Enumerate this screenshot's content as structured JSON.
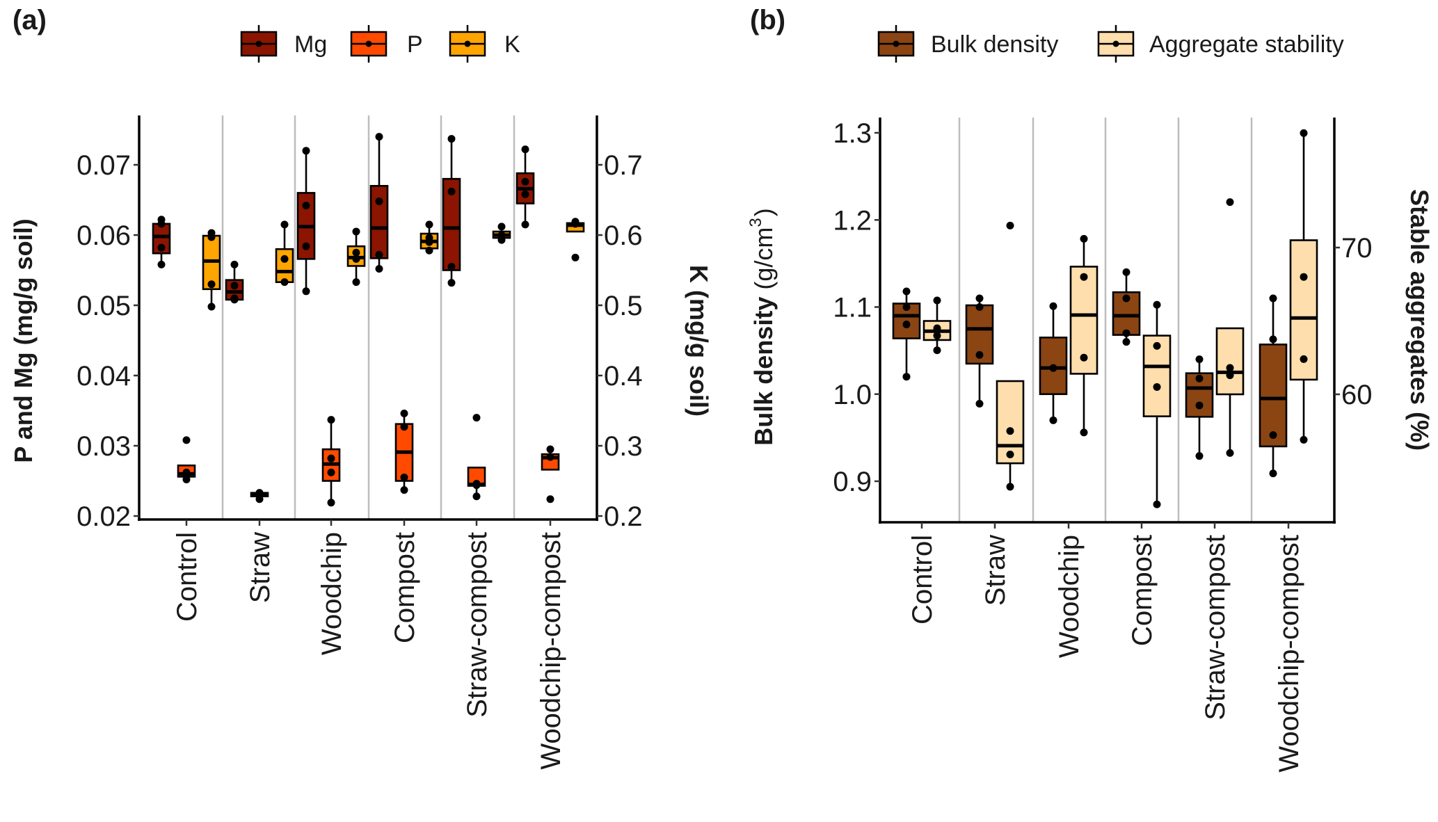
{
  "figure": {
    "panel_a_label": "(a)",
    "panel_b_label": "(b)"
  },
  "chart_data": [
    {
      "type": "box",
      "panel": "(a)",
      "legend": [
        {
          "name": "Mg",
          "color": "#8B1500"
        },
        {
          "name": "P",
          "color": "#FF4A00"
        },
        {
          "name": "K",
          "color": "#FFA500"
        }
      ],
      "legend_position": "top",
      "categories": [
        "Control",
        "Straw",
        "Woodchip",
        "Compost",
        "Straw-compost",
        "Woodchip-compost"
      ],
      "ylabel_left": "P and Mg (mg/g soil)",
      "ylabel_right": "K (mg/g soil)",
      "ylim_left": [
        0.0195,
        0.077
      ],
      "ylim_right": [
        0.195,
        0.77
      ],
      "yticks_left": [
        "0.02",
        "0.03",
        "0.04",
        "0.05",
        "0.06",
        "0.07"
      ],
      "yticks_right": [
        "0.2",
        "0.3",
        "0.4",
        "0.5",
        "0.6",
        "0.7"
      ],
      "grid": "vertical separators between categories",
      "series": [
        {
          "name": "Mg",
          "axis": "left",
          "color": "#8B1500",
          "boxes": [
            {
              "q1": 0.0574,
              "median": 0.0598,
              "q3": 0.0616,
              "whisker_low": 0.0558,
              "whisker_high": 0.0622,
              "points": [
                0.0558,
                0.0582,
                0.0616,
                0.0622
              ]
            },
            {
              "q1": 0.0508,
              "median": 0.0519,
              "q3": 0.0536,
              "whisker_low": 0.0508,
              "whisker_high": 0.0558,
              "points": [
                0.0508,
                0.051,
                0.0528,
                0.0558
              ]
            },
            {
              "q1": 0.0566,
              "median": 0.0612,
              "q3": 0.066,
              "whisker_low": 0.052,
              "whisker_high": 0.072,
              "points": [
                0.052,
                0.0584,
                0.0642,
                0.072
              ]
            },
            {
              "q1": 0.0567,
              "median": 0.061,
              "q3": 0.067,
              "whisker_low": 0.0552,
              "whisker_high": 0.074,
              "points": [
                0.0552,
                0.0572,
                0.0648,
                0.074
              ]
            },
            {
              "q1": 0.055,
              "median": 0.061,
              "q3": 0.068,
              "whisker_low": 0.0532,
              "whisker_high": 0.0737,
              "points": [
                0.0532,
                0.0555,
                0.0662,
                0.0737
              ]
            },
            {
              "q1": 0.0645,
              "median": 0.0666,
              "q3": 0.0688,
              "whisker_low": 0.0615,
              "whisker_high": 0.0722,
              "points": [
                0.0615,
                0.0658,
                0.0676,
                0.0722
              ]
            }
          ]
        },
        {
          "name": "P",
          "axis": "left",
          "color": "#FF4A00",
          "boxes": [
            {
              "q1": 0.0256,
              "median": 0.026,
              "q3": 0.0272,
              "whisker_low": 0.0252,
              "whisker_high": 0.0272,
              "points": [
                0.0252,
                0.0258,
                0.0262
              ],
              "outliers": [
                0.0308
              ]
            },
            {
              "q1": 0.0228,
              "median": 0.0231,
              "q3": 0.0233,
              "whisker_low": 0.0228,
              "whisker_high": 0.0233,
              "points": [
                0.0224,
                0.0231,
                0.0233
              ]
            },
            {
              "q1": 0.025,
              "median": 0.0274,
              "q3": 0.0295,
              "whisker_low": 0.0219,
              "whisker_high": 0.0337,
              "points": [
                0.0219,
                0.0262,
                0.0282,
                0.0337
              ]
            },
            {
              "q1": 0.025,
              "median": 0.0291,
              "q3": 0.0331,
              "whisker_low": 0.0237,
              "whisker_high": 0.0346,
              "points": [
                0.0237,
                0.0255,
                0.0327,
                0.0346
              ]
            },
            {
              "q1": 0.0243,
              "median": 0.0245,
              "q3": 0.0269,
              "whisker_low": 0.0228,
              "whisker_high": 0.0269,
              "points": [
                0.0228,
                0.0244,
                0.0246
              ],
              "outliers": [
                0.034
              ]
            },
            {
              "q1": 0.0266,
              "median": 0.0283,
              "q3": 0.0288,
              "whisker_low": 0.0266,
              "whisker_high": 0.0295,
              "points": [
                0.0284,
                0.0295
              ],
              "outliers": [
                0.0224
              ]
            }
          ]
        },
        {
          "name": "K",
          "axis": "right",
          "color": "#FFA500",
          "boxes": [
            {
              "q1": 0.523,
              "median": 0.563,
              "q3": 0.599,
              "whisker_low": 0.498,
              "whisker_high": 0.603,
              "points": [
                0.498,
                0.53,
                0.597,
                0.603
              ]
            },
            {
              "q1": 0.533,
              "median": 0.548,
              "q3": 0.58,
              "whisker_low": 0.533,
              "whisker_high": 0.615,
              "points": [
                0.533,
                0.566,
                0.615
              ]
            },
            {
              "q1": 0.556,
              "median": 0.568,
              "q3": 0.584,
              "whisker_low": 0.533,
              "whisker_high": 0.605,
              "points": [
                0.533,
                0.566,
                0.575,
                0.605
              ]
            },
            {
              "q1": 0.581,
              "median": 0.591,
              "q3": 0.602,
              "whisker_low": 0.578,
              "whisker_high": 0.615,
              "points": [
                0.578,
                0.59,
                0.596,
                0.615
              ]
            },
            {
              "q1": 0.596,
              "median": 0.6,
              "q3": 0.605,
              "whisker_low": 0.593,
              "whisker_high": 0.612,
              "points": [
                0.593,
                0.6,
                0.612
              ]
            },
            {
              "q1": 0.605,
              "median": 0.614,
              "q3": 0.617,
              "whisker_low": 0.605,
              "whisker_high": 0.619,
              "points": [
                0.616,
                0.619
              ],
              "outliers": [
                0.568
              ]
            }
          ]
        }
      ]
    },
    {
      "type": "box",
      "panel": "(b)",
      "legend": [
        {
          "name": "Bulk density",
          "color": "#8B4513"
        },
        {
          "name": "Aggregate stability",
          "color": "#FFDEAD"
        }
      ],
      "legend_position": "top",
      "categories": [
        "Control",
        "Straw",
        "Woodchip",
        "Compost",
        "Straw-compost",
        "Woodchip-compost"
      ],
      "ylabel_left": "Bulk density (g/cm3)",
      "ylabel_left_main": "Bulk density",
      "ylabel_left_unit": "(g/cm",
      "ylabel_left_sup": "3",
      "ylabel_left_close": ")",
      "ylabel_right": "Stable aggregates (%)",
      "ylim_left": [
        0.86,
        1.31
      ],
      "ylim_right": [
        52.0,
        78.5
      ],
      "yticks_left": [
        "0.9",
        "1.0",
        "1.1",
        "1.2",
        "1.3"
      ],
      "yticks_right": [
        "60",
        "70"
      ],
      "grid": "vertical separators between categories",
      "series": [
        {
          "name": "Bulk density",
          "axis": "left",
          "color": "#8B4513",
          "boxes": [
            {
              "q1": 1.064,
              "median": 1.09,
              "q3": 1.104,
              "whisker_low": 1.02,
              "whisker_high": 1.118,
              "points": [
                1.02,
                1.08,
                1.1,
                1.118
              ]
            },
            {
              "q1": 1.035,
              "median": 1.075,
              "q3": 1.102,
              "whisker_low": 0.989,
              "whisker_high": 1.11,
              "points": [
                0.989,
                1.045,
                1.1,
                1.11
              ]
            },
            {
              "q1": 1.0,
              "median": 1.03,
              "q3": 1.065,
              "whisker_low": 0.97,
              "whisker_high": 1.101,
              "points": [
                0.97,
                1.03,
                1.101
              ]
            },
            {
              "q1": 1.068,
              "median": 1.09,
              "q3": 1.117,
              "whisker_low": 1.06,
              "whisker_high": 1.14,
              "points": [
                1.06,
                1.07,
                1.11,
                1.14
              ]
            },
            {
              "q1": 0.974,
              "median": 1.007,
              "q3": 1.024,
              "whisker_low": 0.929,
              "whisker_high": 1.04,
              "points": [
                0.929,
                0.987,
                1.018,
                1.04
              ]
            },
            {
              "q1": 0.94,
              "median": 0.995,
              "q3": 1.057,
              "whisker_low": 0.909,
              "whisker_high": 1.11,
              "points": [
                0.909,
                0.953,
                1.063,
                1.11
              ]
            }
          ]
        },
        {
          "name": "Aggregate stability",
          "axis": "right",
          "color": "#FFDEAD",
          "boxes": [
            {
              "q1": 63.7,
              "median": 64.3,
              "q3": 65.0,
              "whisker_low": 63.0,
              "whisker_high": 66.4,
              "points": [
                63.0,
                64.0,
                64.5,
                66.4
              ]
            },
            {
              "q1": 55.3,
              "median": 56.5,
              "q3": 60.9,
              "whisker_low": 53.7,
              "whisker_high": 60.9,
              "points": [
                53.7,
                55.9,
                57.5
              ],
              "outliers": [
                71.5
              ]
            },
            {
              "q1": 61.4,
              "median": 65.4,
              "q3": 68.7,
              "whisker_low": 57.4,
              "whisker_high": 70.6,
              "points": [
                57.4,
                62.5,
                68.0,
                70.6
              ]
            },
            {
              "q1": 58.5,
              "median": 61.9,
              "q3": 64.0,
              "whisker_low": 52.5,
              "whisker_high": 66.1,
              "points": [
                52.5,
                60.5,
                63.3,
                66.1
              ]
            },
            {
              "q1": 60.0,
              "median": 61.5,
              "q3": 64.5,
              "whisker_low": 56.0,
              "whisker_high": 64.5,
              "points": [
                56.0,
                61.3,
                61.8
              ],
              "outliers": [
                73.1
              ]
            },
            {
              "q1": 61.0,
              "median": 65.2,
              "q3": 70.5,
              "whisker_low": 56.9,
              "whisker_high": 77.8,
              "points": [
                56.9,
                62.4,
                68.0,
                77.8
              ]
            }
          ]
        }
      ]
    }
  ]
}
